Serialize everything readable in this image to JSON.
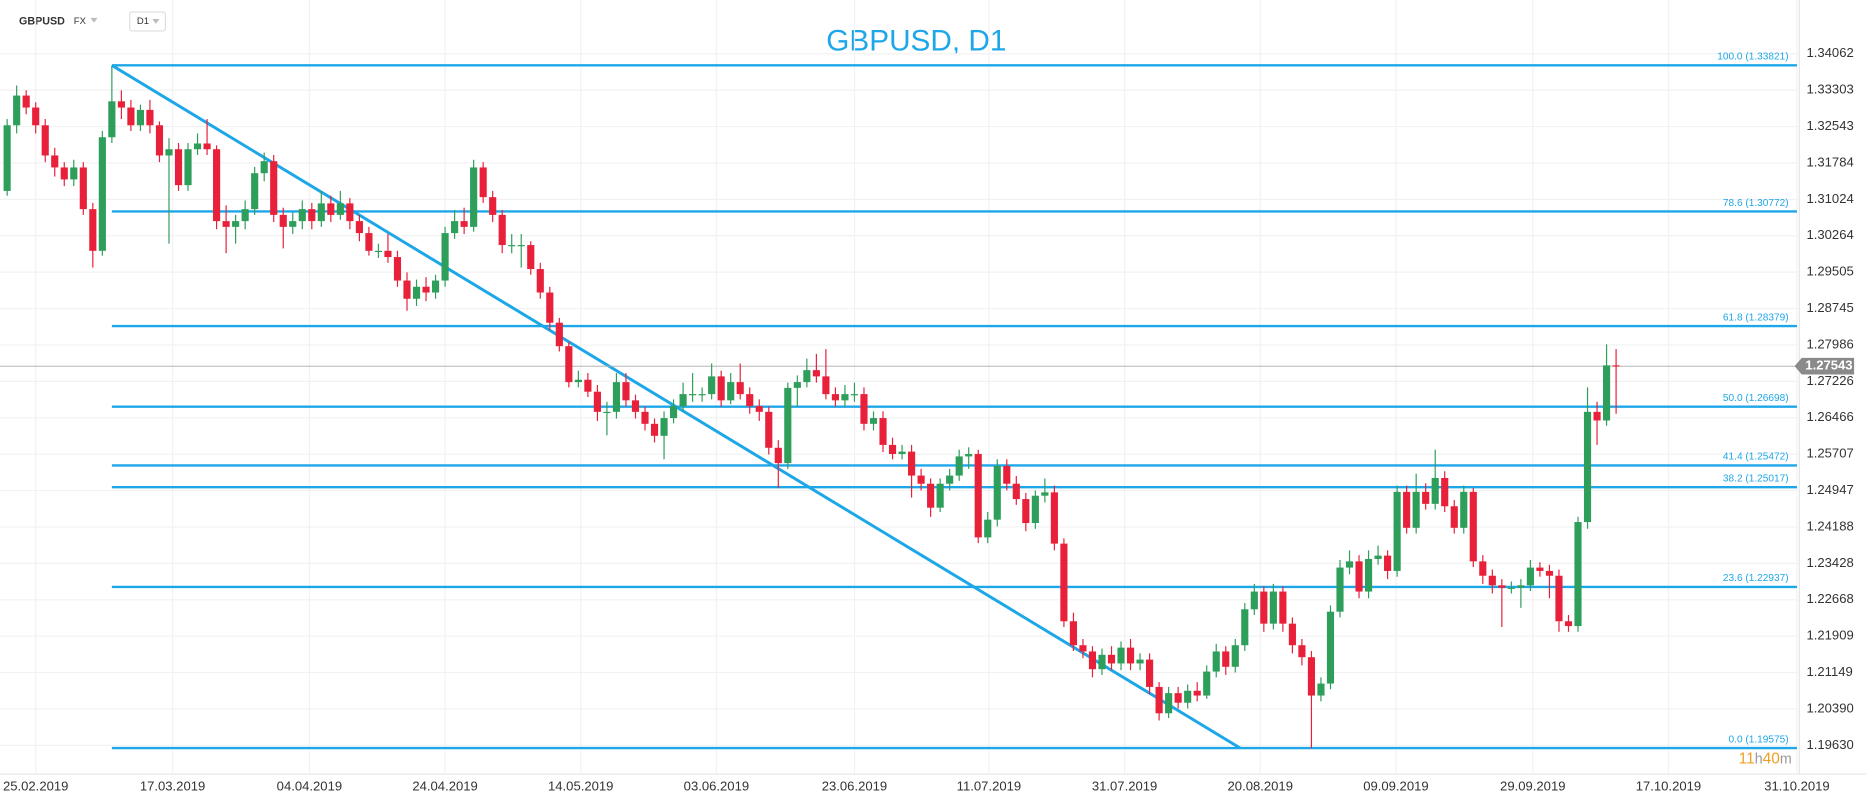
{
  "header": {
    "symbol": "GBPUSD",
    "market": "FX",
    "interval": "D1"
  },
  "chart_data": {
    "type": "candlestick",
    "title": "GBPUSD, D1",
    "up_color": "#2e9e5b",
    "down_color": "#e8203a",
    "line_color": "#1ea7e8",
    "grid": true,
    "ylim": [
      1.19032,
      1.35184
    ],
    "yticks": [
      1.34062,
      1.33303,
      1.32543,
      1.31784,
      1.31024,
      1.30264,
      1.29505,
      1.28745,
      1.27986,
      1.27226,
      1.26466,
      1.25707,
      1.24947,
      1.24188,
      1.23428,
      1.22668,
      1.21909,
      1.21149,
      {
        "value": 1.2039,
        "label": "1.20390"
      },
      {
        "value": 1.1963,
        "label": "1.19630"
      }
    ],
    "xlim": [
      -0.75,
      188.25
    ],
    "xticks": [
      {
        "value": 3,
        "label": "25.02.2019"
      },
      {
        "value": 17.375,
        "label": "17.03.2019"
      },
      {
        "value": 31.75,
        "label": "04.04.2019"
      },
      {
        "value": 46,
        "label": "24.04.2019"
      },
      {
        "value": 60.25,
        "label": "14.05.2019"
      },
      {
        "value": 74.5,
        "label": "03.06.2019"
      },
      {
        "value": 89,
        "label": "23.06.2019"
      },
      {
        "value": 103.125,
        "label": "11.07.2019"
      },
      {
        "value": 117.375,
        "label": "31.07.2019"
      },
      {
        "value": 131.625,
        "label": "20.08.2019"
      },
      {
        "value": 145.875,
        "label": "09.09.2019"
      },
      {
        "value": 160.25,
        "label": "29.09.2019"
      },
      {
        "value": 174.5,
        "label": "17.10.2019"
      },
      {
        "value": 188,
        "label": "31.10.2019"
      }
    ],
    "ohlc": [
      [
        1.312,
        1.327,
        1.311,
        1.3257
      ],
      [
        1.3257,
        1.334,
        1.324,
        1.3319
      ],
      [
        1.3319,
        1.333,
        1.328,
        1.3294
      ],
      [
        1.3294,
        1.3305,
        1.324,
        1.3257
      ],
      [
        1.3257,
        1.327,
        1.318,
        1.3194
      ],
      [
        1.3194,
        1.321,
        1.315,
        1.3169
      ],
      [
        1.3169,
        1.318,
        1.313,
        1.3144
      ],
      [
        1.3144,
        1.3185,
        1.313,
        1.3169
      ],
      [
        1.3169,
        1.318,
        1.307,
        1.3082
      ],
      [
        1.3082,
        1.3095,
        1.296,
        1.2995
      ],
      [
        1.2995,
        1.3245,
        1.2985,
        1.3232
      ],
      [
        1.3232,
        1.3381,
        1.322,
        1.3307
      ],
      [
        1.3307,
        1.333,
        1.327,
        1.3294
      ],
      [
        1.3294,
        1.331,
        1.3245,
        1.3257
      ],
      [
        1.3257,
        1.33,
        1.3245,
        1.3289
      ],
      [
        1.3289,
        1.331,
        1.324,
        1.3257
      ],
      [
        1.3257,
        1.3265,
        1.318,
        1.3194
      ],
      [
        1.3194,
        1.323,
        1.301,
        1.3207
      ],
      [
        1.3207,
        1.322,
        1.312,
        1.3132
      ],
      [
        1.3132,
        1.322,
        1.312,
        1.3207
      ],
      [
        1.3207,
        1.324,
        1.3195,
        1.3219
      ],
      [
        1.3219,
        1.327,
        1.3195,
        1.3207
      ],
      [
        1.3207,
        1.3215,
        1.304,
        1.3057
      ],
      [
        1.3057,
        1.309,
        1.299,
        1.3045
      ],
      [
        1.3045,
        1.307,
        1.301,
        1.3057
      ],
      [
        1.3057,
        1.31,
        1.304,
        1.3082
      ],
      [
        1.3082,
        1.317,
        1.307,
        1.3157
      ],
      [
        1.3157,
        1.32,
        1.314,
        1.3182
      ],
      [
        1.3182,
        1.3195,
        1.3055,
        1.307
      ],
      [
        1.307,
        1.3085,
        1.3,
        1.3045
      ],
      [
        1.3045,
        1.3075,
        1.303,
        1.3057
      ],
      [
        1.3057,
        1.31,
        1.304,
        1.3082
      ],
      [
        1.3082,
        1.3095,
        1.304,
        1.3057
      ],
      [
        1.3057,
        1.312,
        1.3045,
        1.3094
      ],
      [
        1.3094,
        1.311,
        1.3055,
        1.307
      ],
      [
        1.307,
        1.312,
        1.306,
        1.3094
      ],
      [
        1.3094,
        1.3105,
        1.304,
        1.3057
      ],
      [
        1.3057,
        1.307,
        1.3015,
        1.3032
      ],
      [
        1.3032,
        1.3045,
        1.2985,
        1.2995
      ],
      [
        1.2995,
        1.301,
        1.298,
        1.2995
      ],
      [
        1.2995,
        1.303,
        1.297,
        1.2982
      ],
      [
        1.2982,
        1.2995,
        1.292,
        1.2933
      ],
      [
        1.2933,
        1.295,
        1.287,
        1.2895
      ],
      [
        1.2895,
        1.2935,
        1.288,
        1.292
      ],
      [
        1.292,
        1.294,
        1.289,
        1.2908
      ],
      [
        1.2908,
        1.2945,
        1.2895,
        1.2933
      ],
      [
        1.2933,
        1.3045,
        1.292,
        1.3032
      ],
      [
        1.3032,
        1.308,
        1.302,
        1.3057
      ],
      [
        1.3057,
        1.3085,
        1.303,
        1.3045
      ],
      [
        1.3045,
        1.3185,
        1.3035,
        1.3169
      ],
      [
        1.3169,
        1.318,
        1.3095,
        1.3107
      ],
      [
        1.3107,
        1.312,
        1.3055,
        1.307
      ],
      [
        1.307,
        1.308,
        1.299,
        1.3007
      ],
      [
        1.3007,
        1.303,
        1.299,
        1.3007
      ],
      [
        1.3007,
        1.303,
        1.296,
        1.3007
      ],
      [
        1.3007,
        1.3015,
        1.2945,
        1.2957
      ],
      [
        1.2957,
        1.297,
        1.2895,
        1.2908
      ],
      [
        1.2908,
        1.292,
        1.283,
        1.2845
      ],
      [
        1.2845,
        1.2855,
        1.2785,
        1.2796
      ],
      [
        1.2796,
        1.2805,
        1.271,
        1.2721
      ],
      [
        1.2721,
        1.2745,
        1.271,
        1.2726
      ],
      [
        1.2726,
        1.274,
        1.269,
        1.2701
      ],
      [
        1.2701,
        1.2715,
        1.264,
        1.2659
      ],
      [
        1.2659,
        1.268,
        1.261,
        1.2659
      ],
      [
        1.2659,
        1.274,
        1.2645,
        1.2721
      ],
      [
        1.2721,
        1.274,
        1.267,
        1.2683
      ],
      [
        1.2683,
        1.2695,
        1.2645,
        1.2659
      ],
      [
        1.2659,
        1.267,
        1.262,
        1.2634
      ],
      [
        1.2634,
        1.2645,
        1.2595,
        1.2609
      ],
      [
        1.2609,
        1.266,
        1.256,
        1.2646
      ],
      [
        1.2646,
        1.2685,
        1.2635,
        1.2671
      ],
      [
        1.2671,
        1.272,
        1.266,
        1.2696
      ],
      [
        1.2696,
        1.274,
        1.268,
        1.2696
      ],
      [
        1.2696,
        1.271,
        1.268,
        1.2696
      ],
      [
        1.2696,
        1.276,
        1.2685,
        1.2733
      ],
      [
        1.2733,
        1.2745,
        1.267,
        1.2683
      ],
      [
        1.2683,
        1.274,
        1.2675,
        1.2721
      ],
      [
        1.2721,
        1.276,
        1.2685,
        1.2696
      ],
      [
        1.2696,
        1.271,
        1.2655,
        1.2671
      ],
      [
        1.2671,
        1.2685,
        1.264,
        1.2659
      ],
      [
        1.2659,
        1.267,
        1.257,
        1.2584
      ],
      [
        1.2584,
        1.26,
        1.25,
        1.2552
      ],
      [
        1.2552,
        1.272,
        1.254,
        1.2709
      ],
      [
        1.2709,
        1.2735,
        1.267,
        1.2721
      ],
      [
        1.2721,
        1.277,
        1.271,
        1.2746
      ],
      [
        1.2746,
        1.278,
        1.272,
        1.2733
      ],
      [
        1.2733,
        1.279,
        1.2685,
        1.2696
      ],
      [
        1.2696,
        1.271,
        1.267,
        1.2683
      ],
      [
        1.2683,
        1.2715,
        1.267,
        1.2696
      ],
      [
        1.2696,
        1.272,
        1.268,
        1.2696
      ],
      [
        1.2696,
        1.271,
        1.262,
        1.2634
      ],
      [
        1.2634,
        1.266,
        1.262,
        1.2646
      ],
      [
        1.2646,
        1.266,
        1.2575,
        1.259
      ],
      [
        1.259,
        1.2605,
        1.256,
        1.2571
      ],
      [
        1.2571,
        1.259,
        1.256,
        1.2576
      ],
      [
        1.2576,
        1.259,
        1.248,
        1.2526
      ],
      [
        1.2526,
        1.254,
        1.2495,
        1.2509
      ],
      [
        1.2509,
        1.252,
        1.244,
        1.2459
      ],
      [
        1.2459,
        1.252,
        1.245,
        1.2509
      ],
      [
        1.2509,
        1.254,
        1.2495,
        1.2526
      ],
      [
        1.2526,
        1.258,
        1.2515,
        1.2566
      ],
      [
        1.2566,
        1.2585,
        1.254,
        1.2571
      ],
      [
        1.2571,
        1.258,
        1.2385,
        1.2397
      ],
      [
        1.2397,
        1.245,
        1.2385,
        1.2434
      ],
      [
        1.2434,
        1.256,
        1.242,
        1.2546
      ],
      [
        1.2546,
        1.256,
        1.2495,
        1.2509
      ],
      [
        1.2509,
        1.2525,
        1.2465,
        1.2477
      ],
      [
        1.2477,
        1.249,
        1.241,
        1.2427
      ],
      [
        1.2427,
        1.2495,
        1.2415,
        1.2484
      ],
      [
        1.2484,
        1.252,
        1.247,
        1.2491
      ],
      [
        1.2491,
        1.2505,
        1.237,
        1.2384
      ],
      [
        1.2384,
        1.2395,
        1.221,
        1.2222
      ],
      [
        1.2222,
        1.224,
        1.216,
        1.2172
      ],
      [
        1.2172,
        1.2185,
        1.2145,
        1.2159
      ],
      [
        1.2159,
        1.217,
        1.2105,
        1.2122
      ],
      [
        1.2122,
        1.2165,
        1.211,
        1.2152
      ],
      [
        1.2152,
        1.217,
        1.212,
        1.2134
      ],
      [
        1.2134,
        1.218,
        1.212,
        1.2167
      ],
      [
        1.2167,
        1.2185,
        1.212,
        1.2134
      ],
      [
        1.2134,
        1.2155,
        1.212,
        1.2142
      ],
      [
        1.2142,
        1.2155,
        1.207,
        1.2085
      ],
      [
        1.2085,
        1.2095,
        1.2015,
        1.203
      ],
      [
        1.203,
        1.2085,
        1.202,
        1.2072
      ],
      [
        1.2072,
        1.2085,
        1.204,
        1.2052
      ],
      [
        1.2052,
        1.209,
        1.204,
        1.2077
      ],
      [
        1.2077,
        1.2095,
        1.2055,
        1.2067
      ],
      [
        1.2067,
        1.213,
        1.206,
        1.2117
      ],
      [
        1.2117,
        1.2175,
        1.2105,
        1.2159
      ],
      [
        1.2159,
        1.217,
        1.211,
        1.2127
      ],
      [
        1.2127,
        1.2185,
        1.2115,
        1.2172
      ],
      [
        1.2172,
        1.226,
        1.216,
        1.2247
      ],
      [
        1.2247,
        1.23,
        1.2235,
        1.2284
      ],
      [
        1.2284,
        1.2295,
        1.22,
        1.2217
      ],
      [
        1.2217,
        1.23,
        1.2205,
        1.2284
      ],
      [
        1.2284,
        1.2295,
        1.22,
        1.2217
      ],
      [
        1.2217,
        1.223,
        1.2155,
        1.2172
      ],
      [
        1.2172,
        1.2185,
        1.213,
        1.2147
      ],
      [
        1.2147,
        1.216,
        1.1957,
        1.2067
      ],
      [
        1.2067,
        1.2105,
        1.2055,
        1.2092
      ],
      [
        1.2092,
        1.2255,
        1.208,
        1.2242
      ],
      [
        1.2242,
        1.235,
        1.223,
        1.2334
      ],
      [
        1.2334,
        1.237,
        1.232,
        1.2347
      ],
      [
        1.2347,
        1.236,
        1.227,
        1.2284
      ],
      [
        1.2284,
        1.237,
        1.227,
        1.2352
      ],
      [
        1.2352,
        1.238,
        1.234,
        1.2359
      ],
      [
        1.2359,
        1.237,
        1.231,
        1.2327
      ],
      [
        1.2327,
        1.2505,
        1.2315,
        1.2492
      ],
      [
        1.2492,
        1.2505,
        1.2405,
        1.2417
      ],
      [
        1.2417,
        1.253,
        1.2405,
        1.2492
      ],
      [
        1.2492,
        1.251,
        1.2455,
        1.2467
      ],
      [
        1.2467,
        1.258,
        1.2455,
        1.2521
      ],
      [
        1.2521,
        1.2535,
        1.245,
        1.2462
      ],
      [
        1.2462,
        1.2475,
        1.2405,
        1.2417
      ],
      [
        1.2417,
        1.2505,
        1.2405,
        1.2492
      ],
      [
        1.2492,
        1.25,
        1.2335,
        1.2347
      ],
      [
        1.2347,
        1.236,
        1.23,
        1.2317
      ],
      [
        1.2317,
        1.233,
        1.228,
        1.2297
      ],
      [
        1.2297,
        1.231,
        1.221,
        1.2292
      ],
      [
        1.2292,
        1.2305,
        1.228,
        1.2292
      ],
      [
        1.2292,
        1.231,
        1.225,
        1.2297
      ],
      [
        1.2297,
        1.235,
        1.2285,
        1.2334
      ],
      [
        1.2334,
        1.2345,
        1.2315,
        1.2327
      ],
      [
        1.2327,
        1.234,
        1.227,
        1.2317
      ],
      [
        1.2317,
        1.233,
        1.22,
        1.2222
      ],
      [
        1.2222,
        1.2235,
        1.22,
        1.2212
      ],
      [
        1.2212,
        1.244,
        1.22,
        1.2429
      ],
      [
        1.2429,
        1.271,
        1.2415,
        1.2659
      ],
      [
        1.2659,
        1.268,
        1.259,
        1.2641
      ],
      [
        1.2641,
        1.28,
        1.263,
        1.2756
      ],
      [
        1.2756,
        1.279,
        1.2655,
        1.27543
      ]
    ],
    "fib_levels": [
      {
        "label": "100.0 (1.33821)",
        "value": 1.33821
      },
      {
        "label": "78.6 (1.30772)",
        "value": 1.30772
      },
      {
        "label": "61.8 (1.28379)",
        "value": 1.28379
      },
      {
        "label": "50.0 (1.26698)",
        "value": 1.26698
      },
      {
        "label": "41.4 (1.25472)",
        "value": 1.25472
      },
      {
        "label": "38.2 (1.25017)",
        "value": 1.25017
      },
      {
        "label": "23.6 (1.22937)",
        "value": 1.22937
      },
      {
        "label": "0.0 (1.19575)",
        "value": 1.19575
      }
    ],
    "fib_start": 11,
    "trendline": {
      "x": [
        11,
        129.5
      ],
      "y": [
        1.33821,
        1.19575
      ]
    },
    "last_price": 1.27543,
    "timer": {
      "hours": 11,
      "hours_unit": "h",
      "minutes": 40,
      "minutes_unit": "m"
    }
  }
}
